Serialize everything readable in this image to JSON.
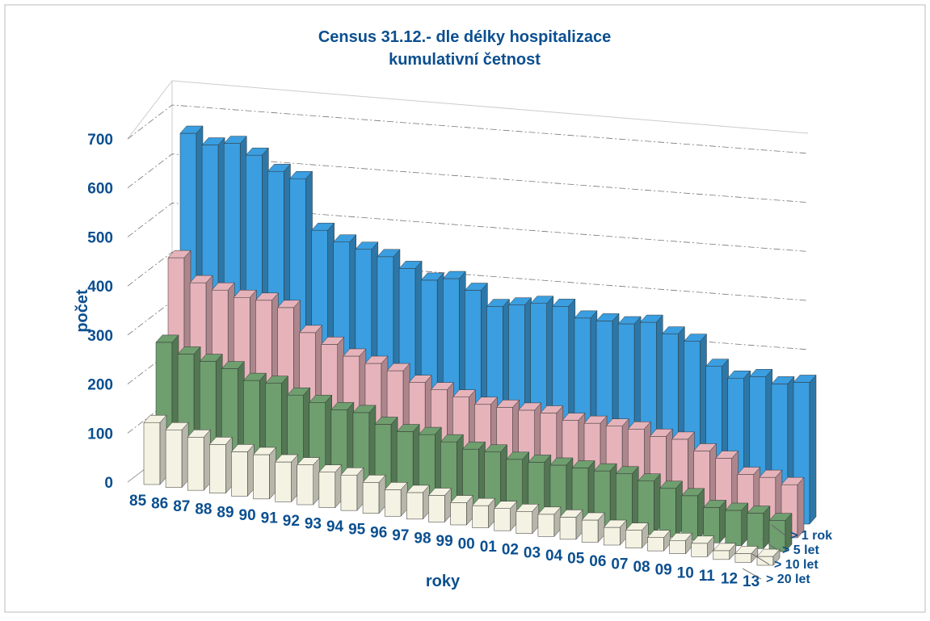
{
  "chart_data": {
    "type": "bar3d",
    "title": "Census 31.12.- dle délky hospitalizace",
    "subtitle": "kumulativní četnost",
    "x_label": "roky",
    "y_label": "počet",
    "categories": [
      "85",
      "86",
      "87",
      "88",
      "89",
      "90",
      "91",
      "92",
      "93",
      "94",
      "95",
      "96",
      "97",
      "98",
      "99",
      "00",
      "01",
      "02",
      "03",
      "04",
      "05",
      "06",
      "07",
      "08",
      "09",
      "10",
      "11",
      "12",
      "13"
    ],
    "series": [
      {
        "name": "> 1 rok",
        "color": "#3a9ee0",
        "values": [
          700,
          680,
          690,
          670,
          640,
          630,
          520,
          500,
          490,
          480,
          460,
          440,
          450,
          430,
          400,
          410,
          420,
          420,
          400,
          400,
          400,
          410,
          390,
          380,
          330,
          310,
          320,
          310,
          320
        ]
      },
      {
        "name": "> 5 let",
        "color": "#e6b3bb",
        "values": [
          450,
          400,
          390,
          380,
          380,
          370,
          320,
          300,
          280,
          270,
          260,
          240,
          230,
          220,
          210,
          210,
          210,
          210,
          200,
          200,
          200,
          200,
          190,
          190,
          170,
          160,
          130,
          130,
          120
        ]
      },
      {
        "name": "> 10 let",
        "color": "#6f9e6f",
        "values": [
          290,
          270,
          260,
          250,
          230,
          230,
          210,
          200,
          190,
          190,
          170,
          160,
          160,
          150,
          140,
          140,
          130,
          130,
          130,
          130,
          130,
          130,
          120,
          110,
          100,
          80,
          80,
          80,
          70
        ]
      },
      {
        "name": "> 20 let",
        "color": "#f4f2e2",
        "values": [
          140,
          130,
          120,
          110,
          100,
          100,
          90,
          90,
          80,
          80,
          70,
          60,
          60,
          60,
          50,
          50,
          50,
          50,
          50,
          50,
          50,
          40,
          40,
          30,
          30,
          30,
          20,
          20,
          20
        ]
      }
    ],
    "ylim": [
      0,
      700
    ],
    "yticks": [
      0,
      100,
      200,
      300,
      400,
      500,
      600,
      700
    ],
    "grid": true
  }
}
